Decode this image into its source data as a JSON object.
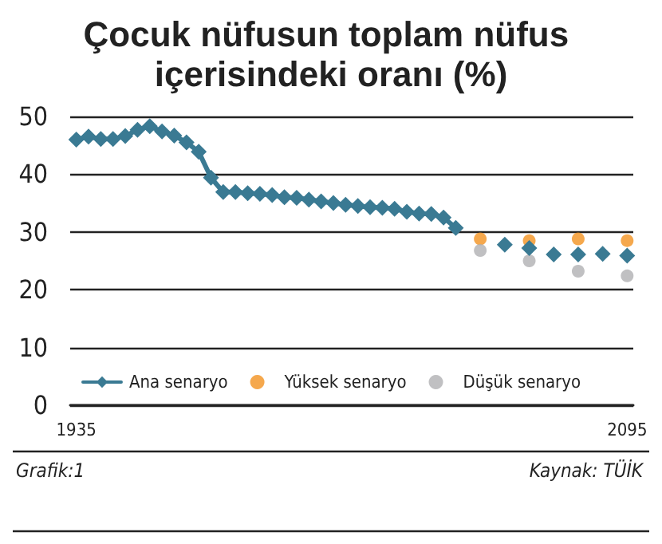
{
  "chart_data": {
    "type": "line",
    "title": "Çocuk nüfusun toplam nüfus içerisindeki oranı (%)",
    "categories": [
      "1935",
      null,
      null,
      null,
      null,
      null,
      null,
      null,
      null,
      null,
      null,
      null,
      null,
      null,
      null,
      null,
      null,
      null,
      null,
      null,
      null,
      null,
      null,
      null,
      null,
      null,
      null,
      null,
      null,
      null,
      null,
      null,
      null,
      null,
      null,
      null,
      null,
      null,
      null,
      null,
      null,
      null,
      null,
      null,
      null,
      "2095"
    ],
    "series": [
      {
        "name": "Ana senaryo",
        "color": "#3a7a93",
        "marker": "diamond",
        "values": [
          46.0,
          46.5,
          46.1,
          46.1,
          46.6,
          47.7,
          48.3,
          47.4,
          46.7,
          45.5,
          43.9,
          39.4,
          36.9,
          36.9,
          36.7,
          36.6,
          36.4,
          36.0,
          35.9,
          35.6,
          35.3,
          35.0,
          34.7,
          34.5,
          34.3,
          34.2,
          34.0,
          33.5,
          33.2,
          33.1,
          32.5,
          30.7,
          null,
          null,
          null,
          27.8,
          null,
          27.2,
          null,
          26.1,
          null,
          26.1,
          null,
          26.2,
          null,
          25.9
        ]
      },
      {
        "name": "Yüksek senaryo",
        "type": "scatter",
        "color": "#f39220",
        "marker": "circle",
        "values": [
          null,
          null,
          null,
          null,
          null,
          null,
          null,
          null,
          null,
          null,
          null,
          null,
          null,
          null,
          null,
          null,
          null,
          null,
          null,
          null,
          null,
          null,
          null,
          null,
          null,
          null,
          null,
          null,
          null,
          null,
          null,
          null,
          null,
          28.8,
          null,
          null,
          null,
          28.5,
          null,
          null,
          null,
          28.8,
          null,
          null,
          null,
          28.5
        ]
      },
      {
        "name": "Düşük senaryo",
        "type": "scatter",
        "color": "#b0b0b3",
        "marker": "circle",
        "values": [
          null,
          null,
          null,
          null,
          null,
          null,
          null,
          null,
          null,
          null,
          null,
          null,
          null,
          null,
          null,
          null,
          null,
          null,
          null,
          null,
          null,
          null,
          null,
          null,
          null,
          null,
          null,
          null,
          null,
          null,
          null,
          null,
          null,
          26.8,
          null,
          null,
          null,
          25.0,
          null,
          null,
          null,
          23.2,
          null,
          null,
          null,
          22.4
        ]
      }
    ],
    "ylim": [
      0,
      50
    ],
    "yticks": [
      0,
      10,
      20,
      30,
      40,
      50
    ],
    "grid": "y",
    "legend": "bottom",
    "annotations": [
      "Grafik:1",
      "Kaynak: TÜİK"
    ]
  }
}
